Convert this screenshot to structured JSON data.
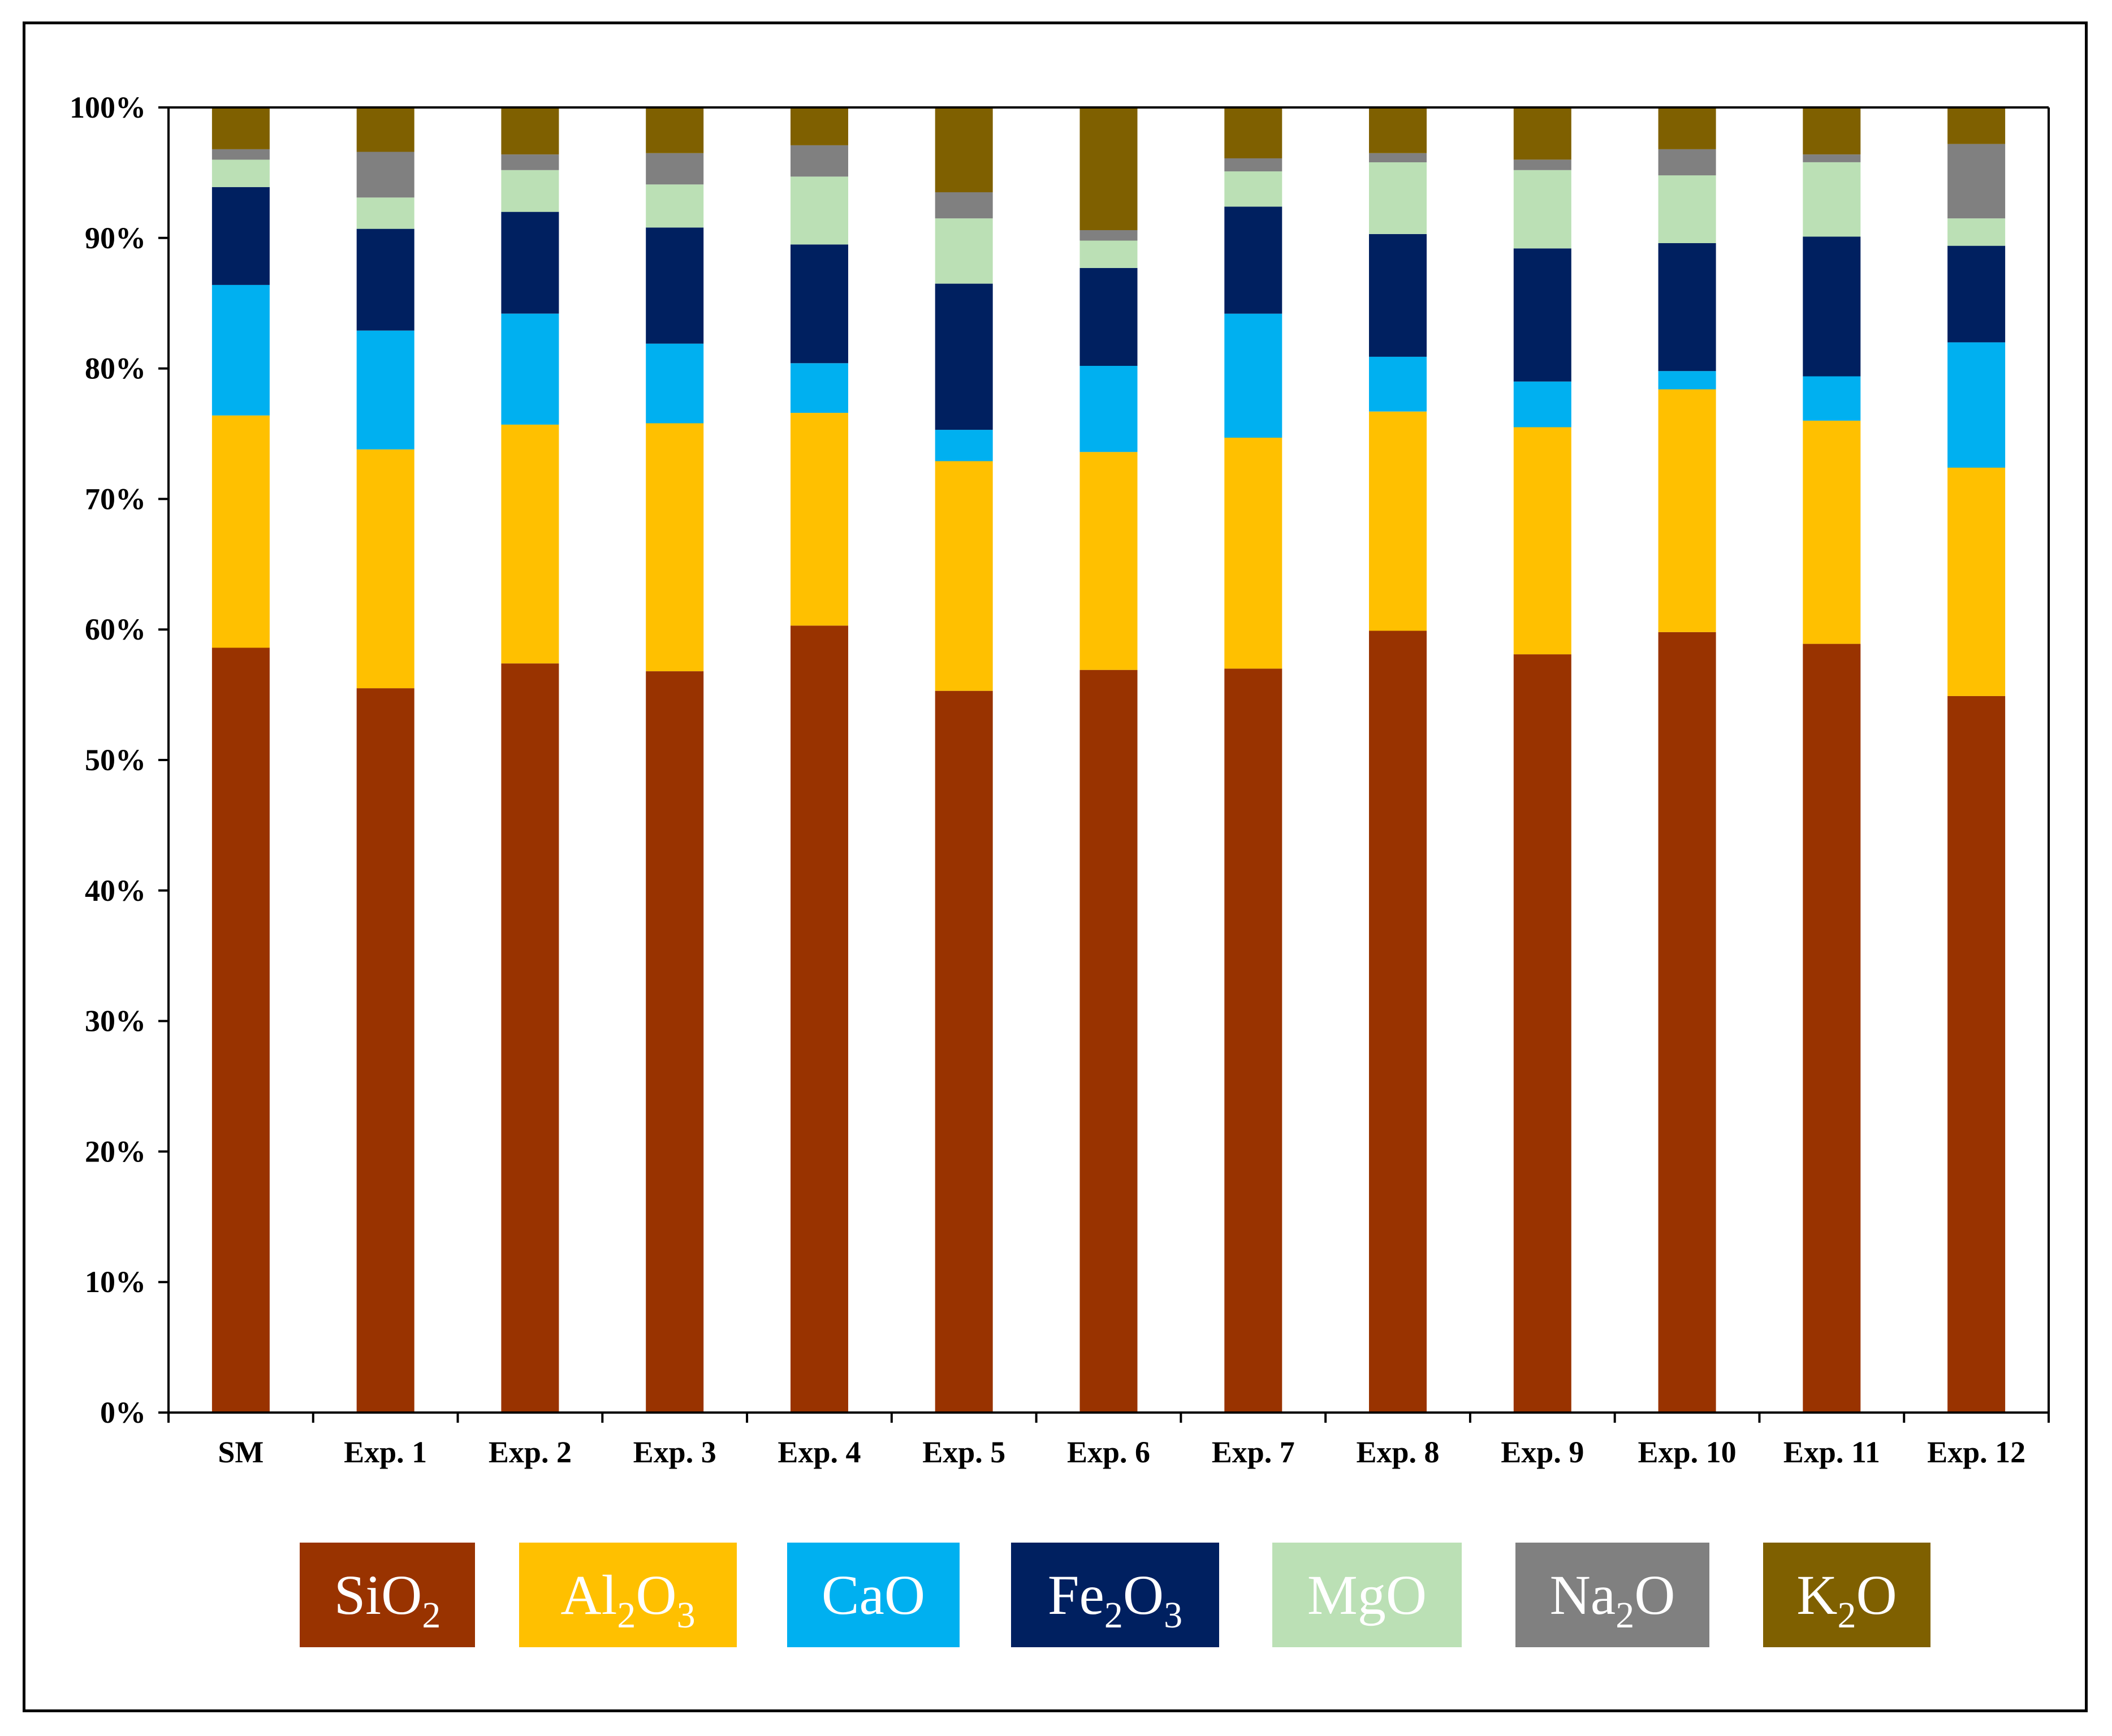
{
  "chart_data": {
    "type": "bar",
    "stacked": "percent",
    "title": "",
    "xlabel": "",
    "ylabel": "",
    "ylim": [
      0,
      100
    ],
    "yticks": [
      "0%",
      "10%",
      "20%",
      "30%",
      "40%",
      "50%",
      "60%",
      "70%",
      "80%",
      "90%",
      "100%"
    ],
    "categories": [
      "SM",
      "Exp. 1",
      "Exp. 2",
      "Exp. 3",
      "Exp. 4",
      "Exp. 5",
      "Exp. 6",
      "Exp. 7",
      "Exp. 8",
      "Exp. 9",
      "Exp. 10",
      "Exp. 11",
      "Exp. 12"
    ],
    "legend_position": "bottom",
    "series": [
      {
        "name": "SiO2",
        "label_main": "SiO",
        "label_sub": "2",
        "color": "#993300",
        "values": [
          58.6,
          55.5,
          57.4,
          56.8,
          60.3,
          55.3,
          56.9,
          57.0,
          59.9,
          58.1,
          59.8,
          58.9,
          54.9
        ]
      },
      {
        "name": "Al2O3",
        "label_parts": [
          "Al",
          "2",
          "O",
          "3"
        ],
        "color": "#FFC000",
        "values": [
          17.8,
          18.3,
          18.3,
          19.0,
          16.3,
          17.6,
          16.7,
          17.7,
          16.8,
          17.4,
          18.6,
          17.1,
          17.5
        ]
      },
      {
        "name": "CaO",
        "label_main": "CaO",
        "label_sub": "",
        "color": "#00B0F0",
        "values": [
          10.0,
          9.1,
          8.5,
          6.1,
          3.8,
          2.4,
          6.6,
          9.5,
          4.2,
          3.5,
          1.4,
          3.4,
          9.6
        ]
      },
      {
        "name": "Fe2O3",
        "label_parts": [
          "Fe",
          "2",
          "O",
          "3"
        ],
        "color": "#002060",
        "values": [
          7.5,
          7.8,
          7.8,
          8.9,
          9.1,
          11.2,
          7.5,
          8.2,
          9.4,
          10.2,
          9.8,
          10.7,
          7.4
        ]
      },
      {
        "name": "MgO",
        "label_main": "MgO",
        "label_sub": "",
        "color": "#BBE0B5",
        "values": [
          2.1,
          2.4,
          3.2,
          3.3,
          5.2,
          5.0,
          2.1,
          2.7,
          5.5,
          6.0,
          5.2,
          5.7,
          2.1
        ]
      },
      {
        "name": "Na2O",
        "label_main": "Na",
        "label_sub": "2",
        "label_tail": "O",
        "color": "#808080",
        "values": [
          0.8,
          3.5,
          1.2,
          2.4,
          2.4,
          2.0,
          0.8,
          1.0,
          0.7,
          0.8,
          2.0,
          0.6,
          5.7
        ]
      },
      {
        "name": "K2O",
        "label_main": "K",
        "label_sub": "2",
        "label_tail": "O",
        "color": "#7F6000",
        "values": [
          3.2,
          3.4,
          3.6,
          3.5,
          2.9,
          6.5,
          9.4,
          3.9,
          3.5,
          4.0,
          3.2,
          3.6,
          2.8
        ]
      }
    ]
  }
}
